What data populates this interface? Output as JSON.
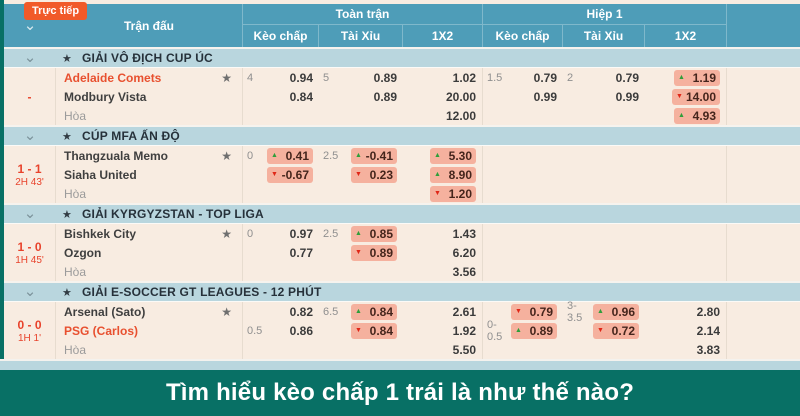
{
  "colors": {
    "frame-teal": "#087065",
    "header-blue": "#4e9db8",
    "league-blue": "#b9d6de",
    "row-cream": "#f8ecE1",
    "accent-orange": "#f15a29",
    "score-red": "#e8432c",
    "fav-orange": "#e8502f",
    "highlight-pink": "#f5b19e",
    "up-green": "#2f9e3a",
    "down-red": "#e02617"
  },
  "icons": {
    "chevron_down": "⌄",
    "star": "★",
    "arrow_up": "▲",
    "arrow_down": "▼"
  },
  "header": {
    "live_badge": "Trực tiếp",
    "match_col": "Trận đấu",
    "groups": [
      {
        "label": "Toàn trận",
        "cols": [
          "Kèo chấp",
          "Tài Xỉu",
          "1X2"
        ]
      },
      {
        "label": "Hiệp 1",
        "cols": [
          "Kèo chấp",
          "Tài Xỉu",
          "1X2"
        ]
      }
    ]
  },
  "sections": [
    {
      "league": "GIẢI VÔ ĐỊCH CUP ÚC",
      "score": {
        "main": "-",
        "time": ""
      },
      "rows": [
        {
          "team": "Adelaide Comets",
          "fav": true,
          "star": true,
          "fth_line": "4",
          "fth": {
            "v": "0.94"
          },
          "fto_line": "5",
          "fto": {
            "v": "0.89"
          },
          "ft1": {
            "v": "1.02"
          },
          "h1h_line": "1.5",
          "h1h": {
            "v": "0.79"
          },
          "h1o_line": "2",
          "h1o": {
            "v": "0.79"
          },
          "h11": {
            "v": "1.19",
            "dir": "up"
          }
        },
        {
          "team": "Modbury Vista",
          "fth": {
            "v": "0.84"
          },
          "fto": {
            "v": "0.89"
          },
          "ft1": {
            "v": "20.00"
          },
          "h1h": {
            "v": "0.99"
          },
          "h1o": {
            "v": "0.99"
          },
          "h11": {
            "v": "14.00",
            "dir": "down"
          }
        },
        {
          "team": "Hòa",
          "draw": true,
          "ft1": {
            "v": "12.00"
          },
          "h11": {
            "v": "4.93",
            "dir": "up"
          }
        }
      ]
    },
    {
      "league": "CÚP MFA ẤN ĐỘ",
      "score": {
        "main": "1 - 1",
        "time": "2H 43'"
      },
      "rows": [
        {
          "team": "Thangzuala Memo",
          "star": true,
          "fth_line": "0",
          "fth": {
            "v": "0.41",
            "dir": "up"
          },
          "fto_line": "2.5",
          "fto": {
            "v": "-0.41",
            "dir": "up"
          },
          "ft1": {
            "v": "5.30",
            "dir": "up"
          }
        },
        {
          "team": "Siaha United",
          "fth": {
            "v": "-0.67",
            "dir": "down"
          },
          "fto": {
            "v": "0.23",
            "dir": "down"
          },
          "ft1": {
            "v": "8.90",
            "dir": "up"
          }
        },
        {
          "team": "Hòa",
          "draw": true,
          "ft1": {
            "v": "1.20",
            "dir": "down"
          }
        }
      ]
    },
    {
      "league": "GIẢI KYRGYZSTAN - TOP LIGA",
      "score": {
        "main": "1 - 0",
        "time": "1H 45'"
      },
      "rows": [
        {
          "team": "Bishkek City",
          "star": true,
          "fth_line": "0",
          "fth": {
            "v": "0.97"
          },
          "fto_line": "2.5",
          "fto": {
            "v": "0.85",
            "dir": "up"
          },
          "ft1": {
            "v": "1.43"
          }
        },
        {
          "team": "Ozgon",
          "fth": {
            "v": "0.77"
          },
          "fto": {
            "v": "0.89",
            "dir": "down"
          },
          "ft1": {
            "v": "6.20"
          }
        },
        {
          "team": "Hòa",
          "draw": true,
          "ft1": {
            "v": "3.56"
          }
        }
      ]
    },
    {
      "league": "GIẢI E-SOCCER GT LEAGUES - 12 PHÚT",
      "score": {
        "main": "0 - 0",
        "time": "1H 1'"
      },
      "rows": [
        {
          "team": "Arsenal (Sato)",
          "star": true,
          "fth": {
            "v": "0.82"
          },
          "fto_line": "6.5",
          "fto": {
            "v": "0.84",
            "dir": "up"
          },
          "ft1": {
            "v": "2.61"
          },
          "h1h": {
            "v": "0.79",
            "dir": "down"
          },
          "h1o_line": "3-3.5",
          "h1o": {
            "v": "0.96",
            "dir": "up"
          },
          "h11": {
            "v": "2.80"
          }
        },
        {
          "team": "PSG (Carlos)",
          "fav": true,
          "fth_line": "0.5",
          "fth": {
            "v": "0.86"
          },
          "fto": {
            "v": "0.84",
            "dir": "down"
          },
          "ft1": {
            "v": "1.92"
          },
          "h1h_line": "0-0.5",
          "h1h": {
            "v": "0.89",
            "dir": "up"
          },
          "h1o": {
            "v": "0.72",
            "dir": "down"
          },
          "h11": {
            "v": "2.14"
          }
        },
        {
          "team": "Hòa",
          "draw": true,
          "ft1": {
            "v": "5.50"
          },
          "h11": {
            "v": "3.83"
          }
        }
      ]
    }
  ],
  "banner": {
    "text": "Tìm hiểu kèo chấp 1 trái là như thế nào?"
  }
}
